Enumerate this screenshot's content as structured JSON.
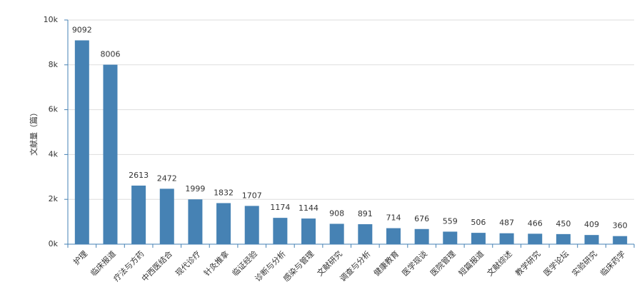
{
  "chart_data": {
    "type": "bar",
    "y_label": "文献量（篇）",
    "categories": [
      "护理",
      "临床报道",
      "疗法与方药",
      "中西医结合",
      "现代诊疗",
      "针灸推拿",
      "临证经验",
      "诊断与分析",
      "感染与管理",
      "文献研究",
      "调查与分析",
      "健康教育",
      "医学现谈",
      "医院管理",
      "短篇报道",
      "文献综述",
      "教学研究",
      "医学论坛",
      "实验研究",
      "临床药学"
    ],
    "values": [
      9092,
      8006,
      2613,
      2472,
      1999,
      1832,
      1707,
      1174,
      1144,
      908,
      891,
      714,
      676,
      559,
      506,
      487,
      466,
      450,
      409,
      360
    ],
    "color": "#4682b4",
    "ylim": [
      0,
      10000
    ],
    "yticks": [
      {
        "value": 0,
        "label": "0k"
      },
      {
        "value": 2000,
        "label": "2k"
      },
      {
        "value": 4000,
        "label": "4k"
      },
      {
        "value": 6000,
        "label": "6k"
      },
      {
        "value": 8000,
        "label": "8k"
      },
      {
        "value": 10000,
        "label": "10k"
      }
    ],
    "grid": true
  }
}
